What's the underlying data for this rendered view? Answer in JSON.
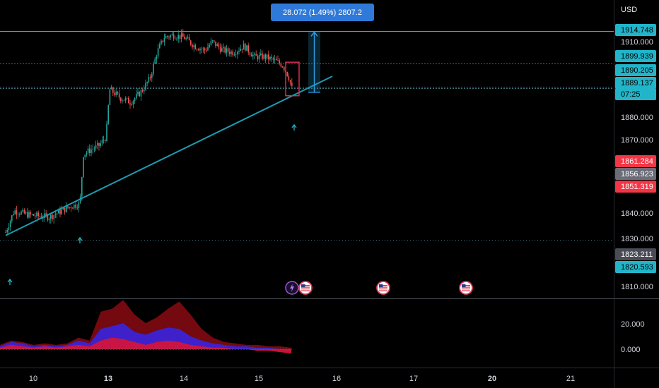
{
  "currency_label": "USD",
  "measure_label": "28.072 (1.49%) 2807.2",
  "price_axis": {
    "ticks": [
      "1910.000",
      "1880.000",
      "1870.000",
      "1840.000",
      "1830.000",
      "1810.000"
    ],
    "badges": [
      {
        "text": "1914.748",
        "color": "#22b5c9",
        "text_color": "#000"
      },
      {
        "text": "1899.939",
        "color": "#22b5c9",
        "text_color": "#000"
      },
      {
        "text": "1890.205",
        "color": "#22b5c9",
        "text_color": "#000"
      },
      {
        "text": "1889.137",
        "color": "#22b5c9",
        "text_color": "#000"
      },
      {
        "text": "07:25",
        "color": "#22b5c9",
        "text_color": "#000"
      },
      {
        "text": "1861.284",
        "color": "#f23645",
        "text_color": "#fff"
      },
      {
        "text": "1856.923",
        "color": "#6a6d78",
        "text_color": "#fff"
      },
      {
        "text": "1851.319",
        "color": "#f23645",
        "text_color": "#fff"
      },
      {
        "text": "1823.211",
        "color": "#4a4c55",
        "text_color": "#fff"
      },
      {
        "text": "1820.593",
        "color": "#22b5c9",
        "text_color": "#000"
      }
    ]
  },
  "indicator_axis": {
    "ticks": [
      "20.000",
      "0.000"
    ]
  },
  "time_axis": [
    {
      "label": "10",
      "bold": false
    },
    {
      "label": "13",
      "bold": true
    },
    {
      "label": "14",
      "bold": false
    },
    {
      "label": "15",
      "bold": false
    },
    {
      "label": "16",
      "bold": false
    },
    {
      "label": "17",
      "bold": false
    },
    {
      "label": "20",
      "bold": true
    },
    {
      "label": "21",
      "bold": false
    }
  ],
  "colors": {
    "up": "#26a69a",
    "down": "#ef5350",
    "trendline": "#1e9bb0",
    "level": "#22b5c9",
    "indicator_dark": "#7a0a10",
    "indicator_blue": "#3b23d6",
    "indicator_red": "#d1143c"
  },
  "chart_data": {
    "type": "candlestick",
    "ylim": [
      1805,
      1920
    ],
    "trendline": {
      "from": {
        "x": "10",
        "y": 1820.5
      },
      "to": {
        "x": "16",
        "y": 1894
      }
    },
    "horizontal_levels": [
      1914.748,
      1899.939,
      1889.137,
      1888.5,
      1818.5
    ],
    "highlight_box": {
      "y_top": 1900.5,
      "y_bottom": 1885.0
    },
    "measure": {
      "from_y": 1886.7,
      "to_y": 1914.748,
      "change": "28.072 (1.49%) 2807.2"
    },
    "indicator": {
      "type": "area",
      "ticks": [
        "20.000",
        "0.000"
      ],
      "series": [
        {
          "name": "",
          "values": [
            3,
            6,
            5,
            3,
            4,
            3,
            4,
            8,
            6,
            26,
            28,
            34,
            24,
            18,
            22,
            28,
            33,
            24,
            14,
            8,
            5,
            4,
            3,
            3,
            2,
            2,
            1
          ]
        },
        {
          "name": "",
          "values": [
            2,
            5,
            4,
            2,
            3,
            2,
            3,
            6,
            4,
            14,
            16,
            18,
            12,
            10,
            13,
            15,
            14,
            9,
            6,
            4,
            3,
            2,
            2,
            1,
            1,
            0,
            -1
          ]
        },
        {
          "name": "",
          "values": [
            1,
            3,
            2,
            1,
            2,
            1,
            2,
            3,
            2,
            6,
            8,
            7,
            5,
            3,
            5,
            6,
            5,
            3,
            2,
            1,
            1,
            0,
            0,
            -1,
            -1,
            -2,
            -3
          ]
        }
      ]
    }
  }
}
